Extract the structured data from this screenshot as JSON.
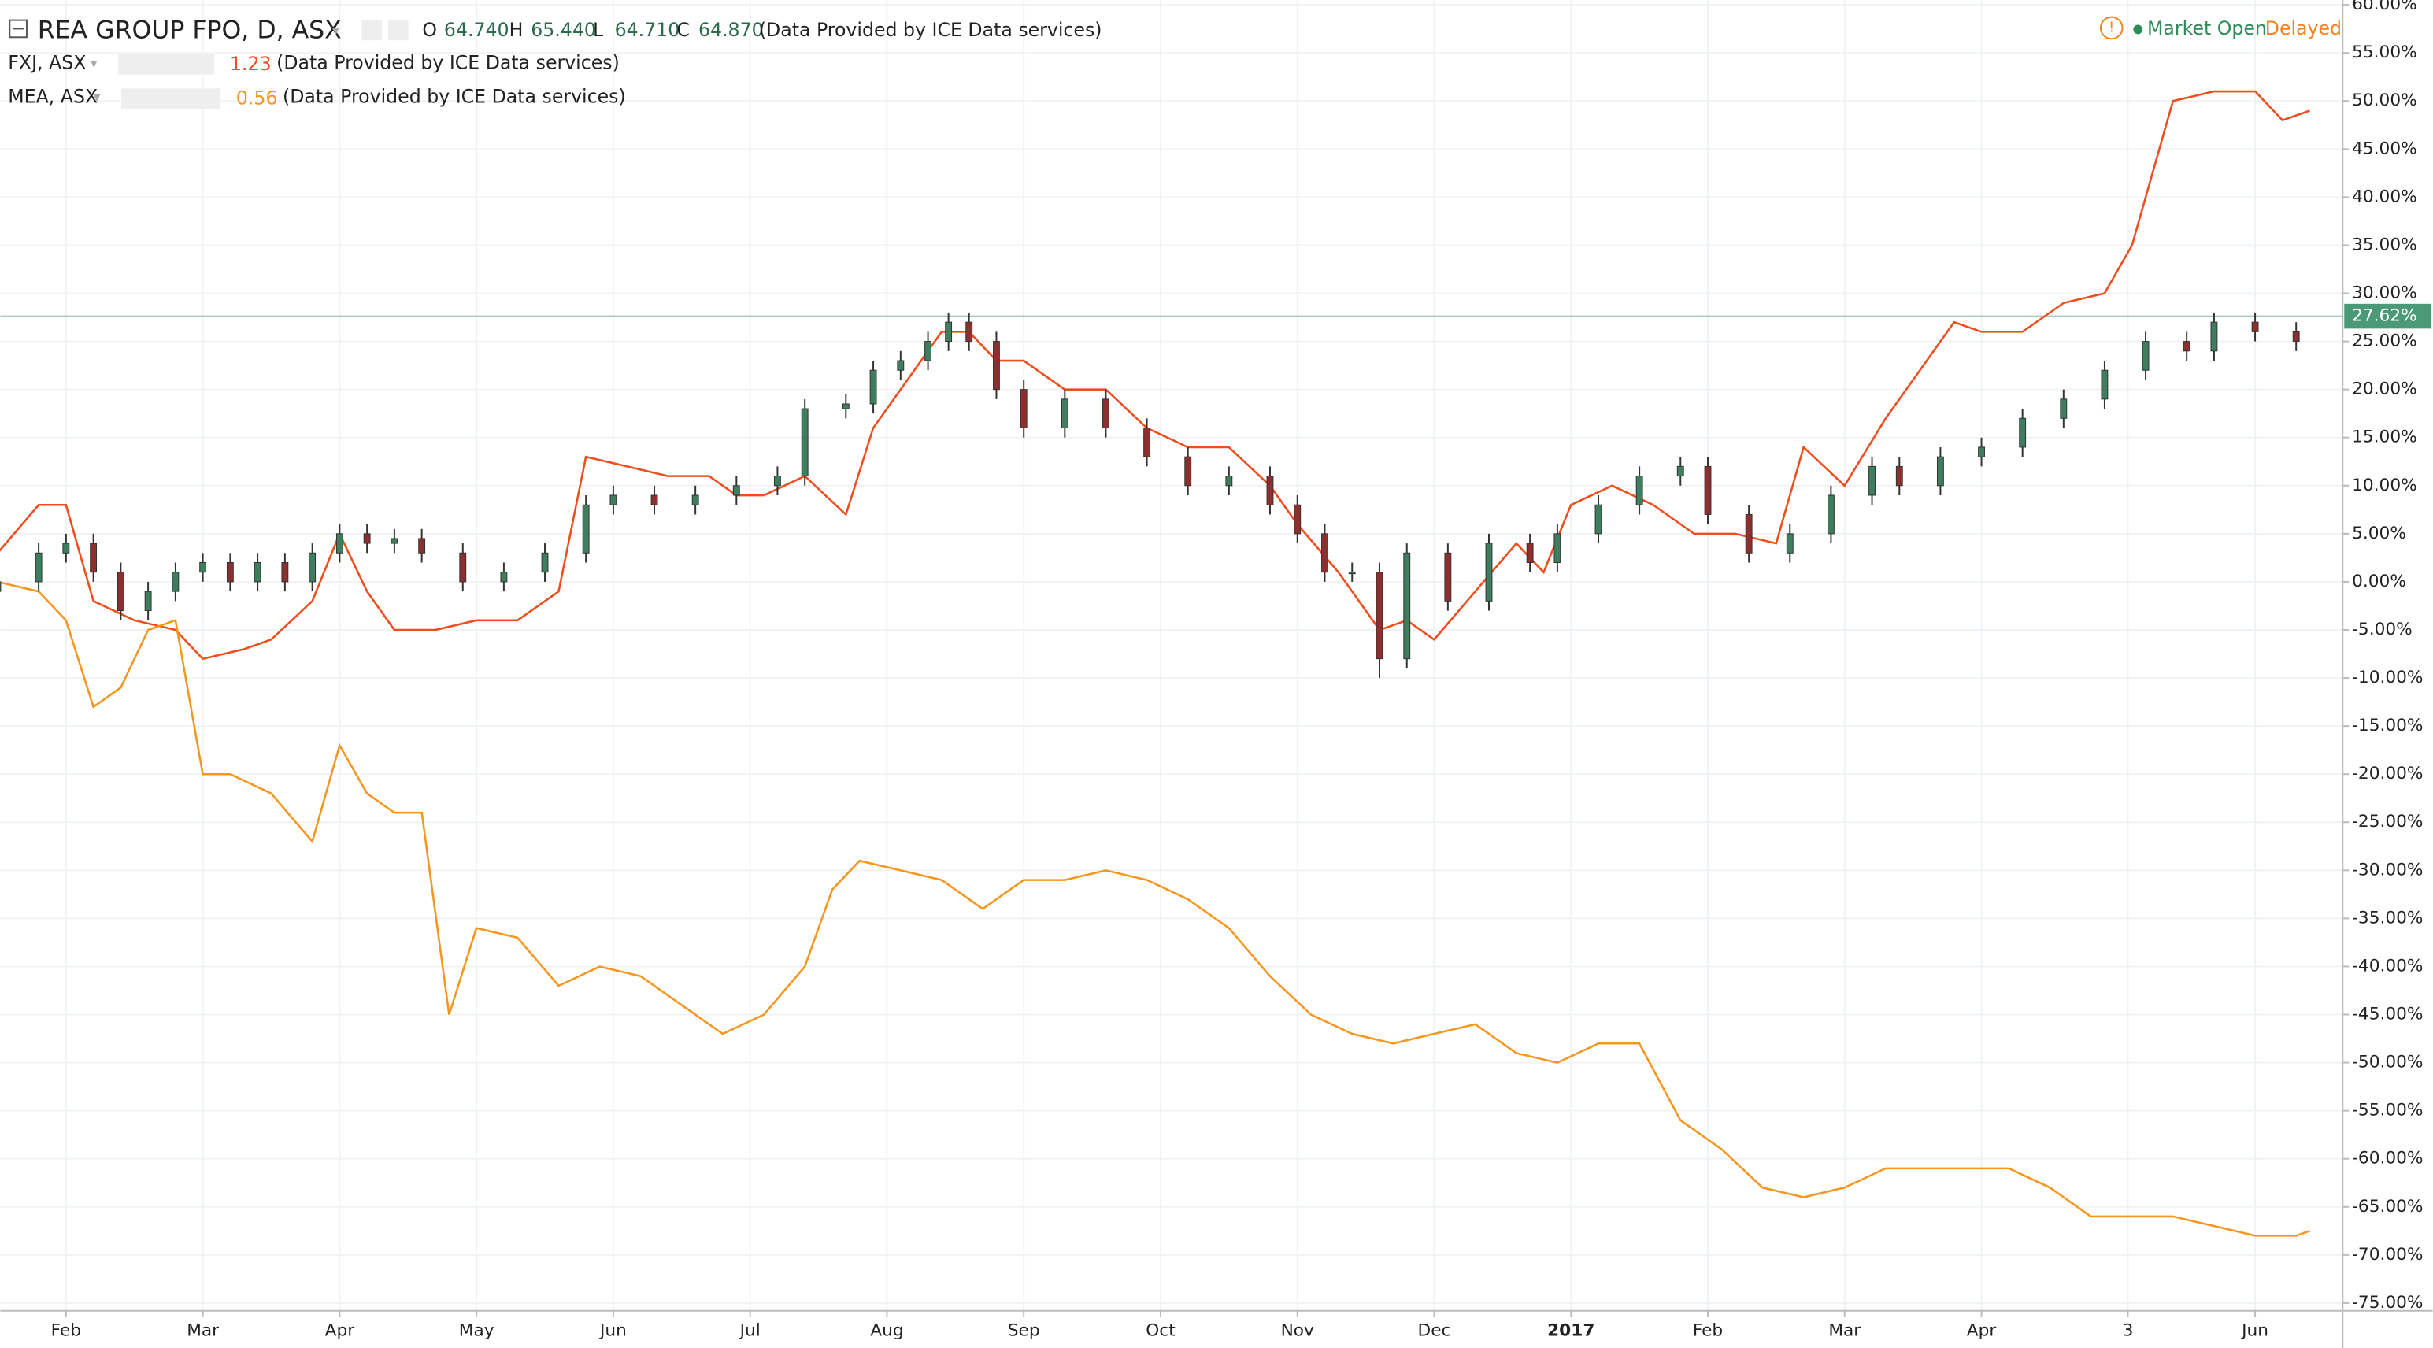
{
  "chart_data": {
    "type": "candlestick",
    "title": "REA GROUP FPO, D, ASX",
    "ohlc": [
      {
        "key": "O",
        "value": "64.740"
      },
      {
        "key": "H",
        "value": "65.440"
      },
      {
        "key": "L",
        "value": "64.710"
      },
      {
        "key": "C",
        "value": "64.870"
      }
    ],
    "source": "(Data Provided by ICE Data services)",
    "status": {
      "open": "Market Open",
      "delay": "Delayed"
    },
    "xlim": [
      0.52,
      17.64
    ],
    "xticks": [
      {
        "value": 1,
        "label": "Feb"
      },
      {
        "value": 2,
        "label": "Mar"
      },
      {
        "value": 3,
        "label": "Apr"
      },
      {
        "value": 4,
        "label": "May"
      },
      {
        "value": 5,
        "label": "Jun"
      },
      {
        "value": 6,
        "label": "Jul"
      },
      {
        "value": 7,
        "label": "Aug"
      },
      {
        "value": 8,
        "label": "Sep"
      },
      {
        "value": 9,
        "label": "Oct"
      },
      {
        "value": 10,
        "label": "Nov"
      },
      {
        "value": 11,
        "label": "Dec"
      },
      {
        "value": 12,
        "label": "2017"
      },
      {
        "value": 13,
        "label": "Feb"
      },
      {
        "value": 14,
        "label": "Mar"
      },
      {
        "value": 15,
        "label": "Apr"
      },
      {
        "value": 16.07,
        "label": "3"
      },
      {
        "value": 17,
        "label": "Jun"
      }
    ],
    "ylim": [
      -75.8,
      60.5
    ],
    "yticks": [
      {
        "value": 60,
        "label": "60.00%"
      },
      {
        "value": 55,
        "label": "55.00%"
      },
      {
        "value": 50,
        "label": "50.00%"
      },
      {
        "value": 45,
        "label": "45.00%"
      },
      {
        "value": 40,
        "label": "40.00%"
      },
      {
        "value": 35,
        "label": "35.00%"
      },
      {
        "value": 30,
        "label": "30.00%"
      },
      {
        "value": 25,
        "label": "25.00%"
      },
      {
        "value": 20,
        "label": "20.00%"
      },
      {
        "value": 15,
        "label": "15.00%"
      },
      {
        "value": 10,
        "label": "10.00%"
      },
      {
        "value": 5,
        "label": "5.00%"
      },
      {
        "value": 0,
        "label": "0.00%"
      },
      {
        "value": -5,
        "label": "-5.00%"
      },
      {
        "value": -10,
        "label": "-10.00%"
      },
      {
        "value": -15,
        "label": "-15.00%"
      },
      {
        "value": -20,
        "label": "-20.00%"
      },
      {
        "value": -25,
        "label": "-25.00%"
      },
      {
        "value": -30,
        "label": "-30.00%"
      },
      {
        "value": -35,
        "label": "-35.00%"
      },
      {
        "value": -40,
        "label": "-40.00%"
      },
      {
        "value": -45,
        "label": "-45.00%"
      },
      {
        "value": -50,
        "label": "-50.00%"
      },
      {
        "value": -55,
        "label": "-55.00%"
      },
      {
        "value": -60,
        "label": "-60.00%"
      },
      {
        "value": -65,
        "label": "-65.00%"
      },
      {
        "value": -70,
        "label": "-70.00%"
      },
      {
        "value": -75,
        "label": "-75.00%"
      }
    ],
    "grid": true,
    "current": {
      "value": 27.62,
      "label": "27.62%",
      "color": "#4a9a78"
    },
    "candles": {
      "up_color": "#3f7d5f",
      "down_color": "#8e2f2f",
      "x": [
        0.5,
        0.8,
        1.0,
        1.2,
        1.4,
        1.6,
        1.8,
        2.0,
        2.2,
        2.4,
        2.6,
        2.8,
        3.0,
        3.2,
        3.4,
        3.6,
        3.9,
        4.2,
        4.5,
        4.8,
        5.0,
        5.3,
        5.6,
        5.9,
        6.2,
        6.4,
        6.7,
        6.9,
        7.1,
        7.3,
        7.45,
        7.6,
        7.8,
        8.0,
        8.3,
        8.6,
        8.9,
        9.2,
        9.5,
        9.8,
        10.0,
        10.2,
        10.4,
        10.6,
        10.8,
        11.1,
        11.4,
        11.7,
        11.9,
        12.2,
        12.5,
        12.8,
        13.0,
        13.3,
        13.6,
        13.9,
        14.2,
        14.4,
        14.7,
        15.0,
        15.3,
        15.6,
        15.9,
        16.2,
        16.5,
        16.7,
        17.0,
        17.3
      ],
      "open": [
        -1,
        0,
        3,
        4,
        1,
        -3,
        -1,
        1,
        2,
        0,
        2,
        0,
        3,
        5,
        4,
        4.5,
        3,
        0,
        1,
        3,
        8,
        9,
        8,
        9,
        10,
        11,
        18,
        18.5,
        22,
        23,
        25,
        27,
        25,
        20,
        16,
        19,
        16,
        13,
        10,
        11,
        8,
        5,
        1,
        1,
        -8,
        3,
        -2,
        4,
        2,
        5,
        8,
        11,
        12,
        7,
        3,
        5,
        9,
        12,
        10,
        13,
        14,
        17,
        19,
        22,
        25,
        24,
        27,
        26
      ],
      "high": [
        1,
        4,
        5,
        5,
        2,
        0,
        2,
        3,
        3,
        3,
        3,
        4,
        6,
        6,
        5.5,
        5.5,
        4,
        2,
        4,
        9,
        10,
        10,
        10,
        11,
        12,
        19,
        19.5,
        23,
        24,
        26,
        28,
        28,
        26,
        21,
        20,
        20,
        17,
        14,
        12,
        12,
        9,
        6,
        2,
        2,
        4,
        4,
        5,
        5,
        6,
        9,
        12,
        13,
        13,
        8,
        6,
        10,
        13,
        13,
        14,
        15,
        18,
        20,
        23,
        26,
        26,
        28,
        28,
        27
      ],
      "low": [
        -2,
        -1,
        2,
        0,
        -4,
        -4,
        -2,
        0,
        -1,
        -1,
        -1,
        -1,
        2,
        3,
        3,
        2,
        -1,
        -1,
        0,
        2,
        7,
        7,
        7,
        8,
        9,
        10,
        17,
        17.5,
        21,
        22,
        24,
        24,
        19,
        15,
        15,
        15,
        12,
        9,
        9,
        7,
        4,
        0,
        0,
        -10,
        -9,
        -3,
        -3,
        1,
        1,
        4,
        7,
        10,
        6,
        2,
        2,
        4,
        8,
        9,
        9,
        12,
        13,
        16,
        18,
        21,
        23,
        23,
        25,
        24
      ],
      "close": [
        0,
        3,
        4,
        1,
        -3,
        -1,
        1,
        2,
        0,
        2,
        0,
        3,
        5,
        4,
        4.5,
        3,
        0,
        1,
        3,
        8,
        9,
        8,
        9,
        10,
        11,
        18,
        18.5,
        22,
        23,
        25,
        27,
        25,
        20,
        16,
        19,
        16,
        13,
        10,
        11,
        8,
        5,
        1,
        1,
        -8,
        3,
        -2,
        4,
        2,
        5,
        8,
        11,
        12,
        7,
        3,
        5,
        9,
        12,
        10,
        13,
        14,
        17,
        19,
        22,
        25,
        24,
        27,
        26,
        25
      ]
    },
    "series": [
      {
        "name": "FXJ, ASX",
        "last": "1.23",
        "color": "#ee4e1e",
        "x": [
          0.5,
          0.8,
          1.0,
          1.2,
          1.5,
          1.8,
          2.0,
          2.3,
          2.5,
          2.8,
          3.0,
          3.2,
          3.4,
          3.7,
          4.0,
          4.3,
          4.6,
          4.8,
          5.1,
          5.4,
          5.7,
          5.9,
          6.1,
          6.4,
          6.7,
          6.9,
          7.2,
          7.4,
          7.6,
          7.8,
          8.0,
          8.3,
          8.6,
          8.9,
          9.2,
          9.5,
          9.8,
          10.0,
          10.3,
          10.6,
          10.8,
          11.0,
          11.3,
          11.6,
          11.8,
          12.0,
          12.3,
          12.6,
          12.9,
          13.2,
          13.5,
          13.7,
          14.0,
          14.3,
          14.6,
          14.8,
          15.0,
          15.3,
          15.6,
          15.9,
          16.1,
          16.4,
          16.7,
          17.0,
          17.2,
          17.4
        ],
        "values": [
          3,
          8,
          8,
          -2,
          -4,
          -5,
          -8,
          -7,
          -6,
          -2,
          5,
          -1,
          -5,
          -5,
          -4,
          -4,
          -1,
          13,
          12,
          11,
          11,
          9,
          9,
          11,
          7,
          16,
          22,
          26,
          26,
          23,
          23,
          20,
          20,
          16,
          14,
          14,
          10,
          6,
          1,
          -5,
          -4,
          -6,
          -1,
          4,
          1,
          8,
          10,
          8,
          5,
          5,
          4,
          14,
          10,
          17,
          23,
          27,
          26,
          26,
          29,
          30,
          35,
          50,
          51,
          51,
          48,
          49
        ]
      },
      {
        "name": "MEA, ASX",
        "last": "0.56",
        "color": "#f5961f",
        "x": [
          0.5,
          0.8,
          1.0,
          1.2,
          1.4,
          1.6,
          1.8,
          2.0,
          2.2,
          2.5,
          2.8,
          3.0,
          3.2,
          3.4,
          3.6,
          3.8,
          4.0,
          4.3,
          4.6,
          4.9,
          5.2,
          5.5,
          5.8,
          6.1,
          6.4,
          6.6,
          6.8,
          7.1,
          7.4,
          7.7,
          8.0,
          8.3,
          8.6,
          8.9,
          9.2,
          9.5,
          9.8,
          10.1,
          10.4,
          10.7,
          11.0,
          11.3,
          11.6,
          11.9,
          12.2,
          12.5,
          12.8,
          13.1,
          13.4,
          13.7,
          14.0,
          14.3,
          14.6,
          14.9,
          15.2,
          15.5,
          15.8,
          16.1,
          16.4,
          16.7,
          17.0,
          17.3,
          17.4
        ],
        "values": [
          0,
          -1,
          -4,
          -13,
          -11,
          -5,
          -4,
          -20,
          -20,
          -22,
          -27,
          -17,
          -22,
          -24,
          -24,
          -45,
          -36,
          -37,
          -42,
          -40,
          -41,
          -44,
          -47,
          -45,
          -40,
          -32,
          -29,
          -30,
          -31,
          -34,
          -31,
          -31,
          -30,
          -31,
          -33,
          -36,
          -41,
          -45,
          -47,
          -48,
          -47,
          -46,
          -49,
          -50,
          -48,
          -48,
          -56,
          -59,
          -63,
          -64,
          -63,
          -61,
          -61,
          -61,
          -61,
          -63,
          -66,
          -66,
          -66,
          -67,
          -68,
          -68,
          -67.5
        ]
      }
    ]
  }
}
